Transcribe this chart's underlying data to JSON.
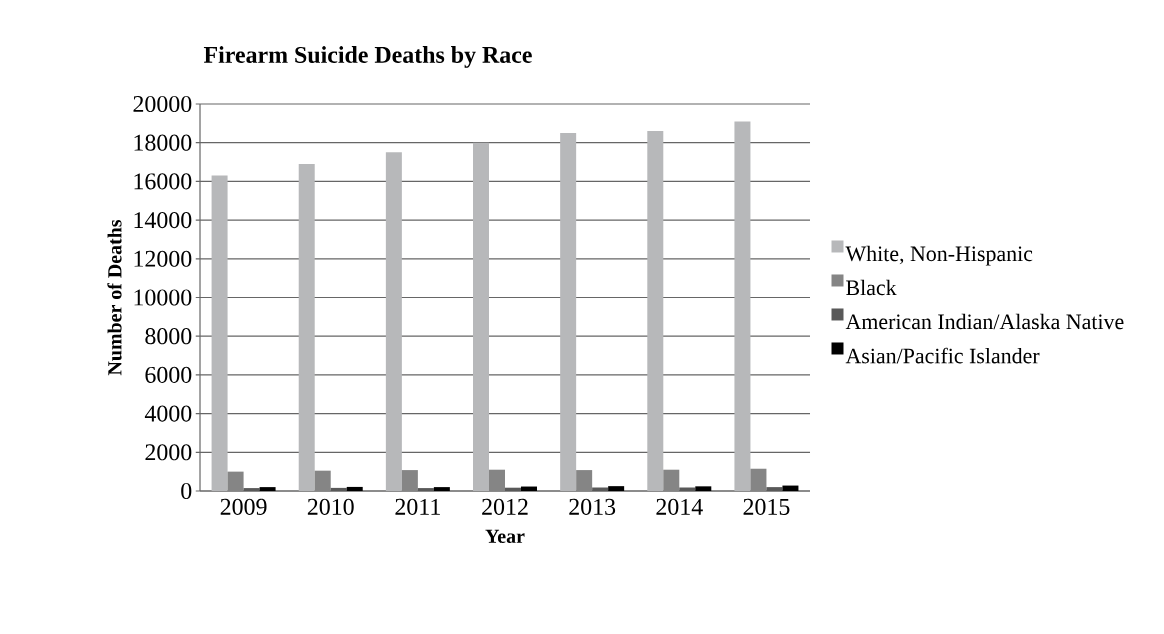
{
  "chart_data": {
    "type": "bar",
    "title": "Firearm Suicide Deaths by Race",
    "xlabel": "Year",
    "ylabel": "Number of Deaths",
    "categories": [
      "2009",
      "2010",
      "2011",
      "2012",
      "2013",
      "2014",
      "2015"
    ],
    "series": [
      {
        "name": "White, Non-Hispanic",
        "color": "#b7b8ba",
        "values": [
          16300,
          16900,
          17500,
          18000,
          18500,
          18600,
          19100
        ]
      },
      {
        "name": "Black",
        "color": "#858585",
        "values": [
          1000,
          1050,
          1080,
          1100,
          1080,
          1100,
          1150
        ]
      },
      {
        "name": "American Indian/Alaska Native",
        "color": "#595959",
        "values": [
          150,
          160,
          150,
          170,
          180,
          180,
          200
        ]
      },
      {
        "name": "Asian/Pacific Islander",
        "color": "#000000",
        "values": [
          200,
          210,
          200,
          230,
          250,
          240,
          280
        ]
      }
    ],
    "ylim": [
      0,
      20000
    ],
    "yticks": [
      0,
      2000,
      4000,
      6000,
      8000,
      10000,
      12000,
      14000,
      16000,
      18000,
      20000
    ],
    "grid": "y",
    "legend": "right"
  }
}
